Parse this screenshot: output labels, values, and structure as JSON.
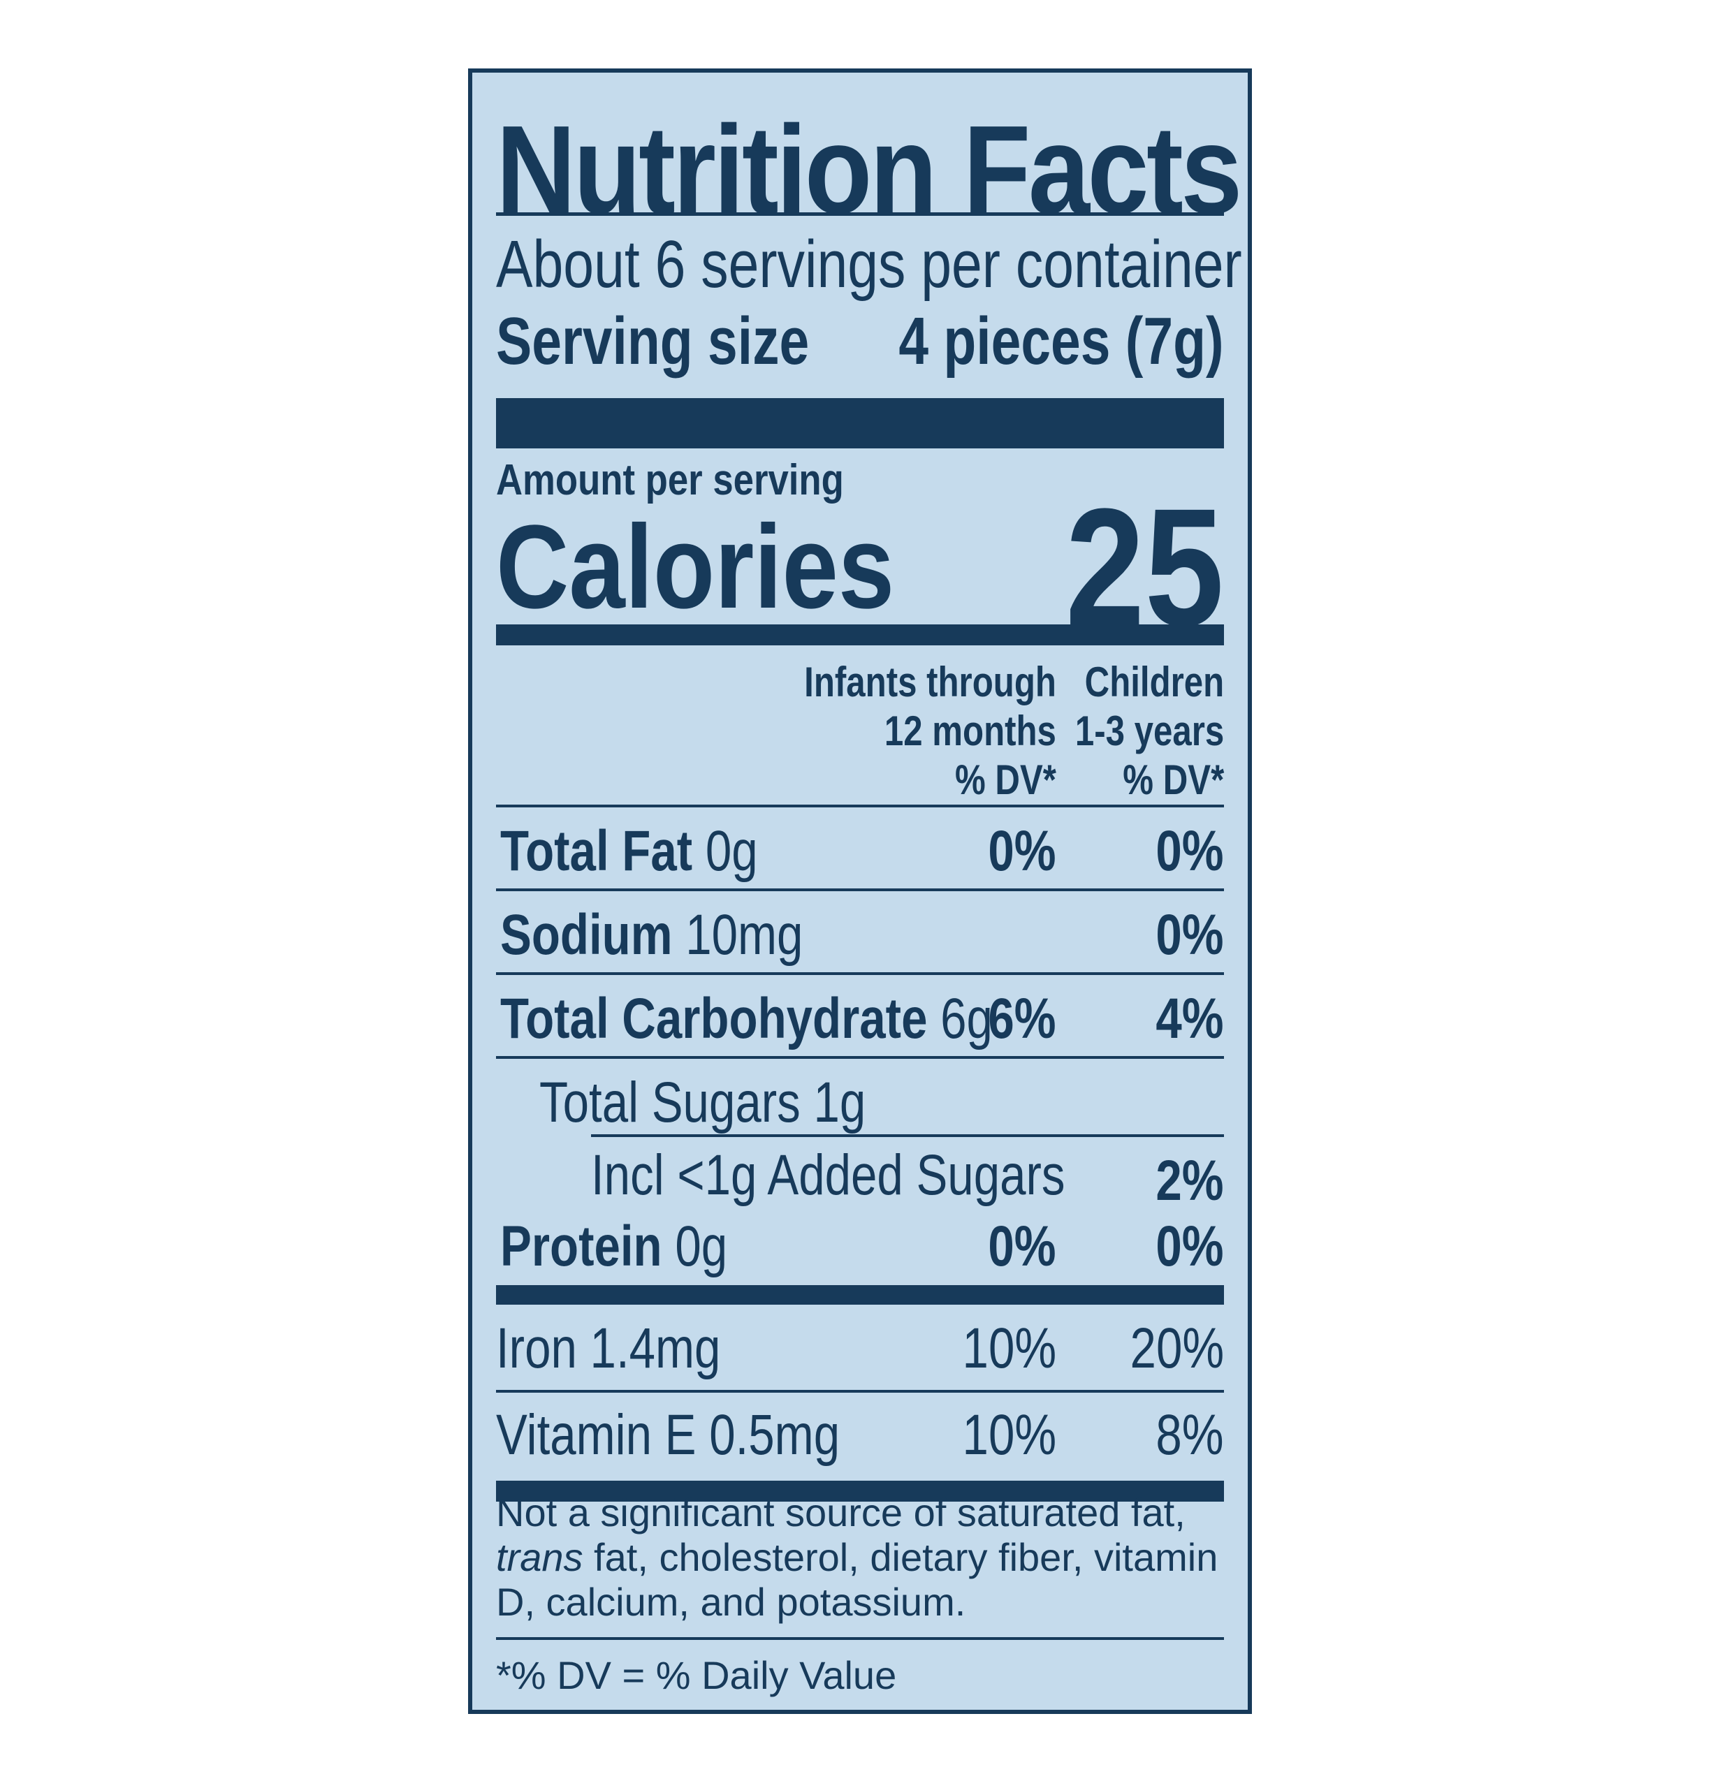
{
  "label": {
    "title": "Nutrition Facts",
    "servings_per_container": "About 6 servings per container",
    "serving_size_label": "Serving size",
    "serving_size_value": "4 pieces (7g)",
    "amount_per_serving": "Amount per serving",
    "calories_label": "Calories",
    "calories_value": "25",
    "col1_header": [
      "Infants through",
      "12 months",
      "% DV*"
    ],
    "col2_header": [
      "Children",
      "1-3 years",
      "% DV*"
    ],
    "rows": [
      {
        "name": "Total Fat",
        "amount": "0g",
        "dv_infants": "0%",
        "dv_children": "0%"
      },
      {
        "name": "Sodium",
        "amount": "10mg",
        "dv_infants": "",
        "dv_children": "0%"
      },
      {
        "name": "Total Carbohydrate",
        "amount": "6g",
        "dv_infants": "6%",
        "dv_children": "4%"
      },
      {
        "name": "Total Sugars 1g",
        "amount": "",
        "dv_infants": "",
        "dv_children": ""
      },
      {
        "name": "Incl <1g Added Sugars",
        "amount": "",
        "dv_infants": "",
        "dv_children": "2%"
      },
      {
        "name": "Protein",
        "amount": "0g",
        "dv_infants": "0%",
        "dv_children": "0%"
      },
      {
        "name": "Iron 1.4mg",
        "amount": "",
        "dv_infants": "10%",
        "dv_children": "20%"
      },
      {
        "name": "Vitamin E 0.5mg",
        "amount": "",
        "dv_infants": "10%",
        "dv_children": "8%"
      }
    ],
    "footnote_pre": "Not a significant source of saturated fat, ",
    "footnote_italic": "trans",
    "footnote_post": " fat, cholesterol, dietary fiber, vitamin D, calcium, and potassium.",
    "dv_note": "*% DV = % Daily Value"
  },
  "colors": {
    "background": "#c5dbec",
    "ink": "#173a5a"
  }
}
